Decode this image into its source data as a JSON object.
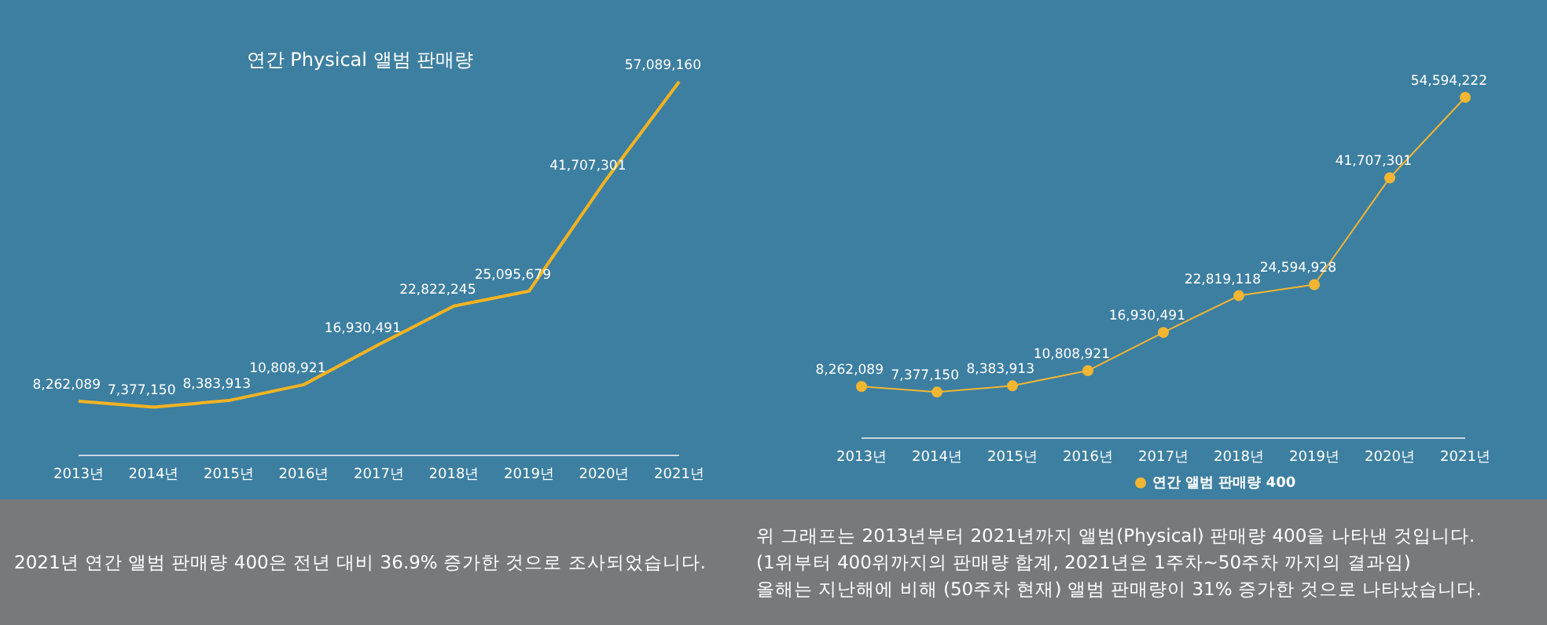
{
  "chart_data": [
    {
      "type": "line",
      "title": "연간 Physical 앨범 판매량",
      "categories": [
        "2013년",
        "2014년",
        "2015년",
        "2016년",
        "2017년",
        "2018년",
        "2019년",
        "2020년",
        "2021년"
      ],
      "series": [
        {
          "color": "#f2b321",
          "values": [
            8262089,
            7377150,
            8383913,
            10808921,
            16930491,
            22822245,
            25095679,
            41707301,
            57089160
          ],
          "value_labels": [
            "8,262,089",
            "7,377,150",
            "8,383,913",
            "10,808,921",
            "16,930,491",
            "22,822,245",
            "25,095,679",
            "41,707,301",
            "57,089,160"
          ]
        }
      ],
      "marker": "none",
      "legend": false,
      "grid": false,
      "tick_labels": "x",
      "annotations": [
        "2021년 연간 앨범 판매량 400은 전년 대비 36.9% 증가한 것으로 조사되었습니다."
      ]
    },
    {
      "type": "line",
      "categories": [
        "2013년",
        "2014년",
        "2015년",
        "2016년",
        "2017년",
        "2018년",
        "2019년",
        "2020년",
        "2021년"
      ],
      "series": [
        {
          "name": "연간 앨범 판매량 400",
          "color": "#f2b632",
          "values": [
            8262089,
            7377150,
            8383913,
            10808921,
            16930491,
            22819118,
            24594928,
            41707301,
            54594222
          ],
          "value_labels": [
            "8,262,089",
            "7,377,150",
            "8,383,913",
            "10,808,921",
            "16,930,491",
            "22,819,118",
            "24,594,928",
            "41,707,301",
            "54,594,222"
          ]
        }
      ],
      "marker": "circle",
      "legend": "bottom",
      "grid": false,
      "tick_labels": "x",
      "annotations": [
        "위 그래프는 2013년부터 2021년까지 앨범(Physical) 판매량 400을 나타낸 것입니다.",
        "(1위부터 400위까지의 판매량 합계, 2021년은 1주차~50주차 까지의 결과임)",
        "올해는 지난해에 비해 (50주차 현재) 앨범 판매량이  31% 증가한 것으로 나타났습니다."
      ]
    }
  ]
}
